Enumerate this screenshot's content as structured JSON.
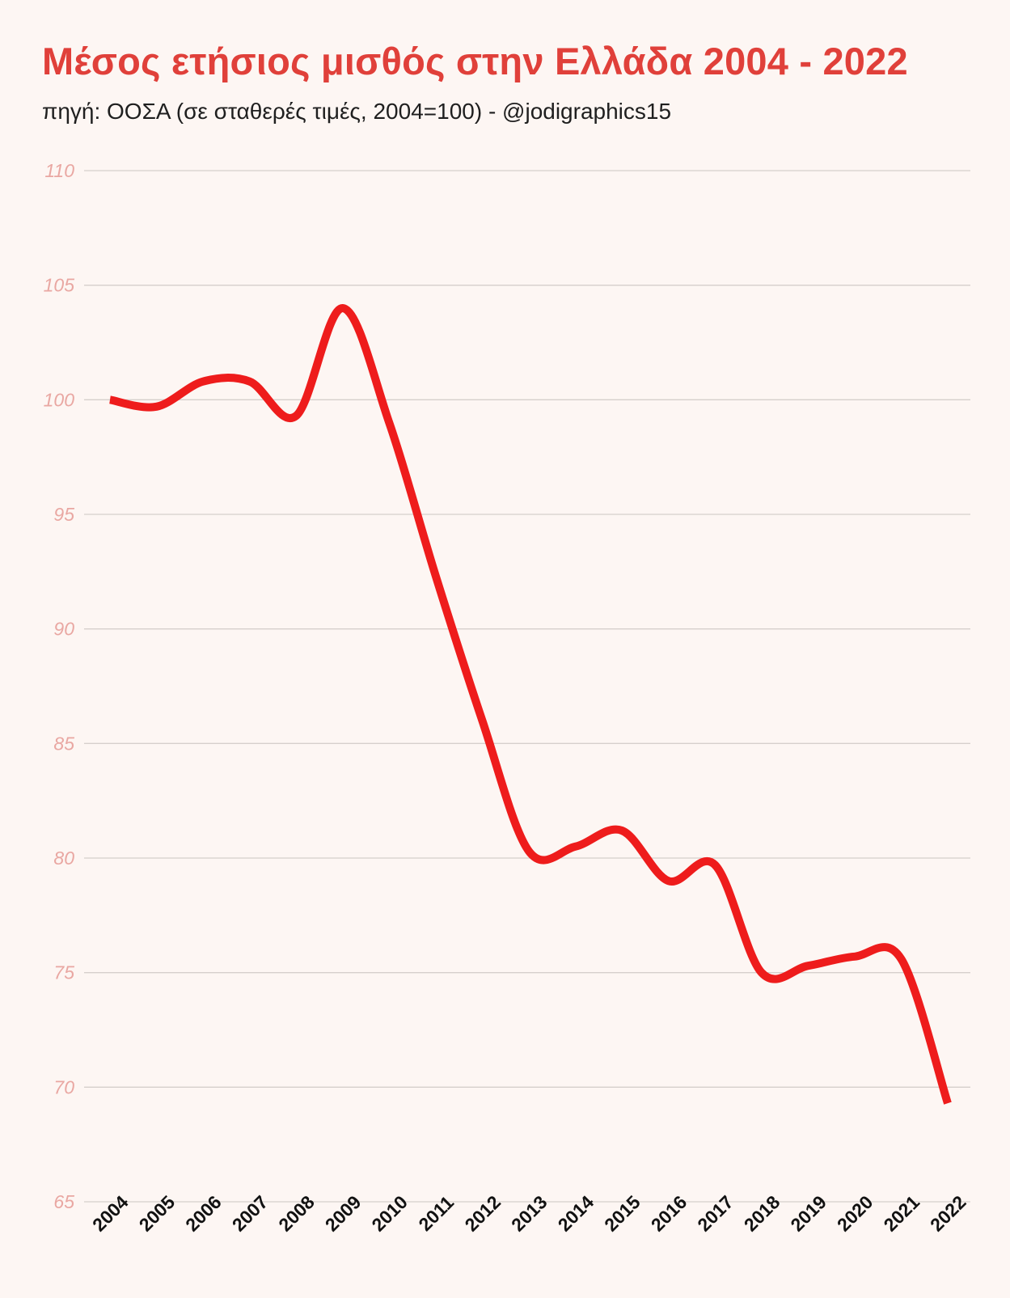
{
  "header": {
    "title": "Μέσος ετήσιος μισθός στην Ελλάδα 2004 - 2022",
    "subtitle": "πηγή: ΟΟΣΑ (σε σταθερές τιμές, 2004=100) - @jodigraphics15"
  },
  "colors": {
    "background": "#fdf6f3",
    "title": "#e0403a",
    "line": "#ee1c1c",
    "ytick": "#e9a7a2",
    "grid": "#d6cfcc"
  },
  "chart_data": {
    "type": "line",
    "title": "Μέσος ετήσιος μισθός στην Ελλάδα 2004 - 2022",
    "subtitle": "πηγή: ΟΟΣΑ (σε σταθερές τιμές, 2004=100) - @jodigraphics15",
    "xlabel": "",
    "ylabel": "",
    "categories": [
      "2004",
      "2005",
      "2006",
      "2007",
      "2008",
      "2009",
      "2010",
      "2011",
      "2012",
      "2013",
      "2014",
      "2015",
      "2016",
      "2017",
      "2018",
      "2019",
      "2020",
      "2021",
      "2022"
    ],
    "series": [
      {
        "name": "Μέσος ετήσιος μισθός",
        "values": [
          100.0,
          99.7,
          100.8,
          100.8,
          99.3,
          104.0,
          99.0,
          92.3,
          86.0,
          80.3,
          80.5,
          81.2,
          79.0,
          79.7,
          75.0,
          75.3,
          75.7,
          75.6,
          69.3
        ]
      }
    ],
    "yticks": [
      65,
      70,
      75,
      80,
      85,
      90,
      95,
      100,
      105,
      110
    ],
    "ylim": [
      65,
      110
    ],
    "grid": true,
    "legend": "none"
  }
}
